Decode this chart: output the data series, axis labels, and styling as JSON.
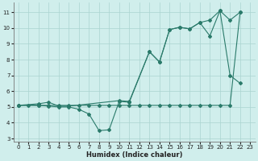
{
  "line1_x": [
    0,
    1,
    2,
    3,
    4,
    5,
    6,
    7,
    8,
    9,
    10,
    11,
    12,
    13,
    14,
    15,
    16,
    17,
    18,
    19,
    20,
    21,
    22
  ],
  "line1_y": [
    5.1,
    5.1,
    5.1,
    5.1,
    5.1,
    5.1,
    5.1,
    5.1,
    5.1,
    5.1,
    5.1,
    5.1,
    5.1,
    5.1,
    5.1,
    5.1,
    5.1,
    5.1,
    5.1,
    5.1,
    5.1,
    5.1,
    11.0
  ],
  "line2_x": [
    0,
    2,
    3,
    4,
    5,
    10,
    11,
    13,
    14,
    15,
    16,
    17,
    18,
    19,
    20,
    21,
    22
  ],
  "line2_y": [
    5.1,
    5.2,
    5.3,
    5.05,
    5.05,
    5.4,
    5.35,
    8.5,
    7.85,
    9.9,
    10.05,
    9.95,
    10.35,
    10.5,
    11.1,
    10.5,
    11.0
  ],
  "line3_x": [
    0,
    2,
    3,
    4,
    5,
    6,
    7,
    8,
    9,
    10,
    11,
    13,
    14,
    15,
    16,
    17,
    18,
    19,
    20,
    21,
    22
  ],
  "line3_y": [
    5.1,
    5.1,
    5.05,
    5.0,
    5.0,
    4.85,
    4.55,
    3.5,
    3.55,
    5.35,
    5.3,
    8.5,
    7.85,
    9.9,
    10.05,
    9.95,
    10.35,
    9.5,
    11.1,
    7.0,
    6.5
  ],
  "color": "#2a7a6a",
  "bg_color": "#d0eeec",
  "grid_color": "#aad4d0",
  "xlabel": "Humidex (Indice chaleur)",
  "xlim": [
    -0.5,
    23.5
  ],
  "ylim": [
    2.8,
    11.6
  ],
  "yticks": [
    3,
    4,
    5,
    6,
    7,
    8,
    9,
    10,
    11
  ],
  "xticks": [
    0,
    1,
    2,
    3,
    4,
    5,
    6,
    7,
    8,
    9,
    10,
    11,
    12,
    13,
    14,
    15,
    16,
    17,
    18,
    19,
    20,
    21,
    22,
    23
  ]
}
